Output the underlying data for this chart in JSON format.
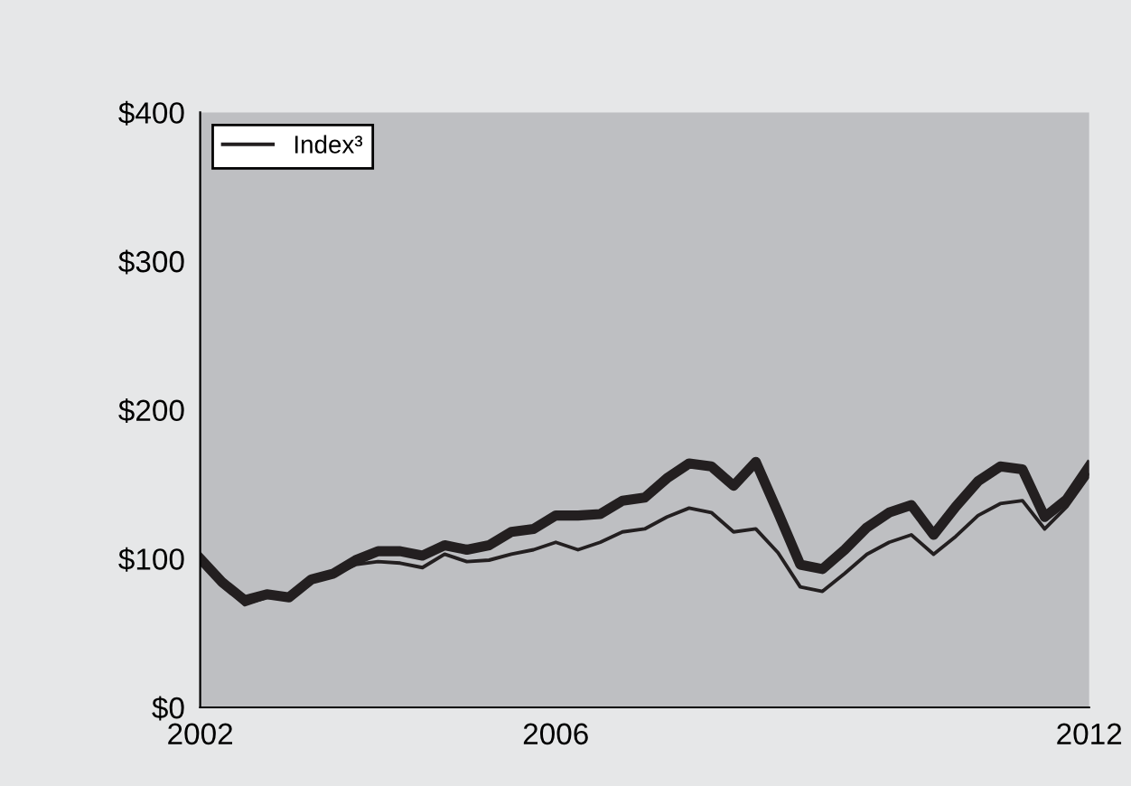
{
  "chart_data": {
    "type": "line",
    "x": [
      2002,
      2002.25,
      2002.5,
      2002.75,
      2003,
      2003.25,
      2003.5,
      2003.75,
      2004,
      2004.25,
      2004.5,
      2004.75,
      2005,
      2005.25,
      2005.5,
      2005.75,
      2006,
      2006.25,
      2006.5,
      2006.75,
      2007,
      2007.25,
      2007.5,
      2007.75,
      2008,
      2008.25,
      2008.5,
      2008.75,
      2009,
      2009.25,
      2009.5,
      2009.75,
      2010,
      2010.25,
      2010.5,
      2010.75,
      2011,
      2011.25,
      2011.5,
      2011.75,
      2012
    ],
    "series": [
      {
        "color": "#231f20",
        "values": [
          100,
          84,
          72,
          76,
          74,
          86,
          90,
          99,
          105,
          105,
          102,
          109,
          106,
          109,
          118,
          120,
          129,
          129,
          130,
          139,
          141,
          154,
          164,
          162,
          149,
          165,
          131,
          96,
          93,
          106,
          121,
          131,
          136,
          116,
          135,
          152,
          162,
          160,
          128,
          140,
          162
        ]
      },
      {
        "name": "Index³",
        "color": "#231f20",
        "values": [
          100,
          83,
          69,
          74,
          73,
          87,
          89,
          96,
          98,
          97,
          94,
          103,
          98,
          99,
          103,
          106,
          111,
          106,
          111,
          118,
          120,
          128,
          134,
          131,
          118,
          120,
          104,
          81,
          78,
          90,
          103,
          111,
          116,
          103,
          115,
          129,
          137,
          139,
          120,
          135,
          156
        ]
      }
    ],
    "xlim": [
      2002,
      2012
    ],
    "xticks": [
      2002,
      2006,
      2012
    ],
    "ylim": [
      0,
      400
    ],
    "yticks": [
      {
        "value": 0,
        "label": "$0"
      },
      {
        "value": 100,
        "label": "$100"
      },
      {
        "value": 200,
        "label": "$200"
      },
      {
        "value": 300,
        "label": "$300"
      },
      {
        "value": 400,
        "label": "$400"
      }
    ],
    "grid": false,
    "legend": "top left",
    "marker": "none",
    "line_style": "solid"
  }
}
